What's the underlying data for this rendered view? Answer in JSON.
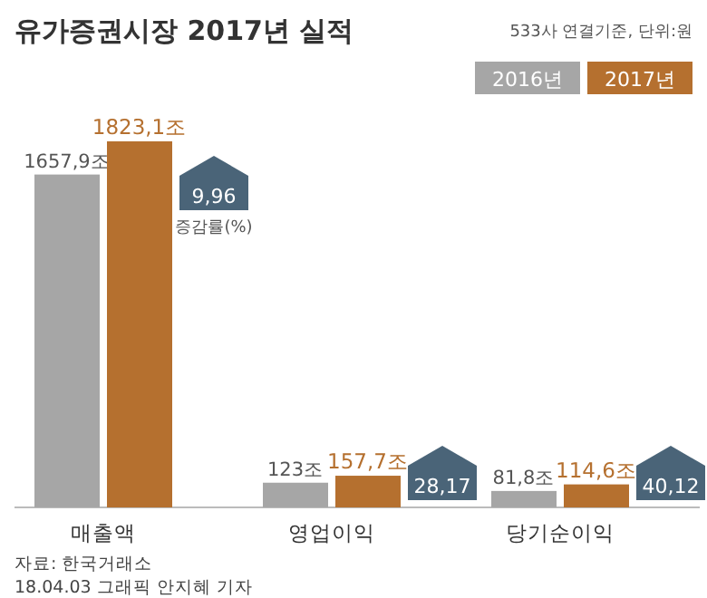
{
  "chart_data": {
    "type": "bar",
    "title": "유가증권시장 2017년 실적",
    "subtitle": "533사 연결기준, 단위:원",
    "categories": [
      "매출액",
      "영업이익",
      "당기순이익"
    ],
    "series": [
      {
        "name": "2016년",
        "color": "#a6a6a6",
        "values": [
          1657.9,
          123,
          81.8
        ],
        "value_labels": [
          "1657,9조",
          "123조",
          "81,8조"
        ]
      },
      {
        "name": "2017년",
        "color": "#b5702f",
        "values": [
          1823.1,
          157.7,
          114.6
        ],
        "value_labels": [
          "1823,1조",
          "157,7조",
          "114,6조"
        ]
      }
    ],
    "legend": "top right",
    "annotations": [
      "9,96",
      "28,17",
      "40,12",
      "증감률(%)",
      "자료: 한국거래소",
      "18.04.03 그래픽 안지혜 기자"
    ]
  }
}
